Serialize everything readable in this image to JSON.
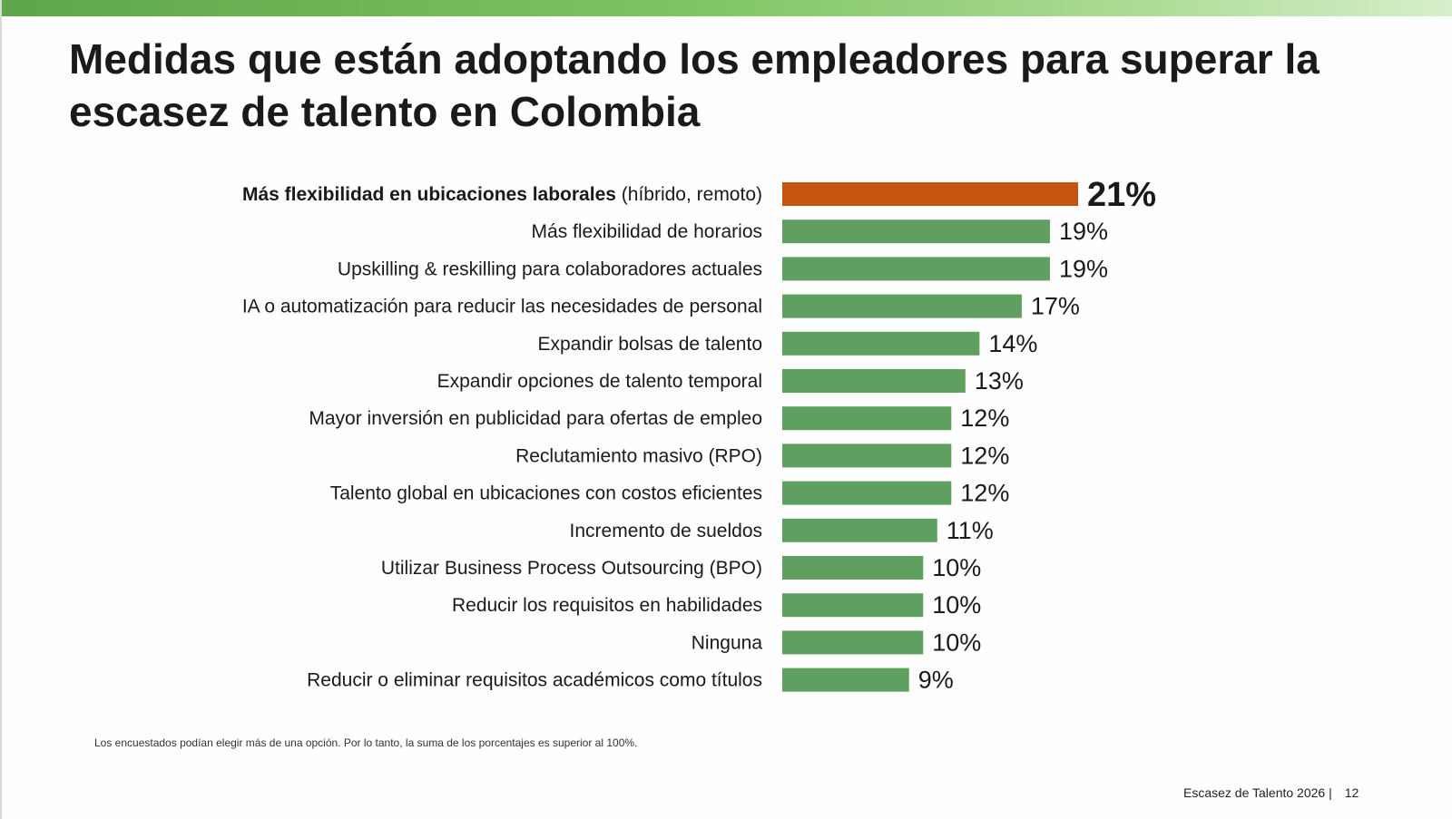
{
  "title": "Medidas que están adoptando los empleadores para superar la escasez de talento en Colombia",
  "chart_data": {
    "type": "bar",
    "orientation": "horizontal",
    "categories": [
      {
        "bold": "Más flexibilidad en ubicaciones  laborales",
        "rest": " (híbrido, remoto)"
      },
      {
        "bold": "",
        "rest": "Más flexibilidad de horarios"
      },
      {
        "bold": "",
        "rest": "Upskilling & reskilling para colaboradores actuales"
      },
      {
        "bold": "",
        "rest": "IA o automatización para reducir las necesidades de personal"
      },
      {
        "bold": "",
        "rest": "Expandir bolsas de talento"
      },
      {
        "bold": "",
        "rest": "Expandir opciones de talento temporal"
      },
      {
        "bold": "",
        "rest": "Mayor inversión en publicidad para ofertas de empleo"
      },
      {
        "bold": "",
        "rest": "Reclutamiento masivo (RPO)"
      },
      {
        "bold": "",
        "rest": "Talento global en ubicaciones con costos eficientes"
      },
      {
        "bold": "",
        "rest": "Incremento de sueldos"
      },
      {
        "bold": "",
        "rest": "Utilizar Business Process Outsourcing (BPO)"
      },
      {
        "bold": "",
        "rest": "Reducir los requisitos en habilidades"
      },
      {
        "bold": "",
        "rest": "Ninguna"
      },
      {
        "bold": "",
        "rest": "Reducir o eliminar requisitos académicos como títulos"
      }
    ],
    "values": [
      21,
      19,
      19,
      17,
      14,
      13,
      12,
      12,
      12,
      11,
      10,
      10,
      10,
      9
    ],
    "value_labels": [
      "21%",
      "19%",
      "19%",
      "17%",
      "14%",
      "13%",
      "12%",
      "12%",
      "12%",
      "11%",
      "10%",
      "10%",
      "10%",
      "9%"
    ],
    "highlight_index": 0,
    "colors": {
      "highlight": "#c5550e",
      "default": "#5f9f5f"
    },
    "xlim": [
      0,
      21
    ],
    "xlabel": "",
    "ylabel": ""
  },
  "footnote": "Los encuestados podían elegir más de una opción. Por lo tanto, la suma de los porcentajes es superior al 100%.",
  "footer": {
    "report": "Escasez de Talento 2026 |",
    "page": "12"
  }
}
